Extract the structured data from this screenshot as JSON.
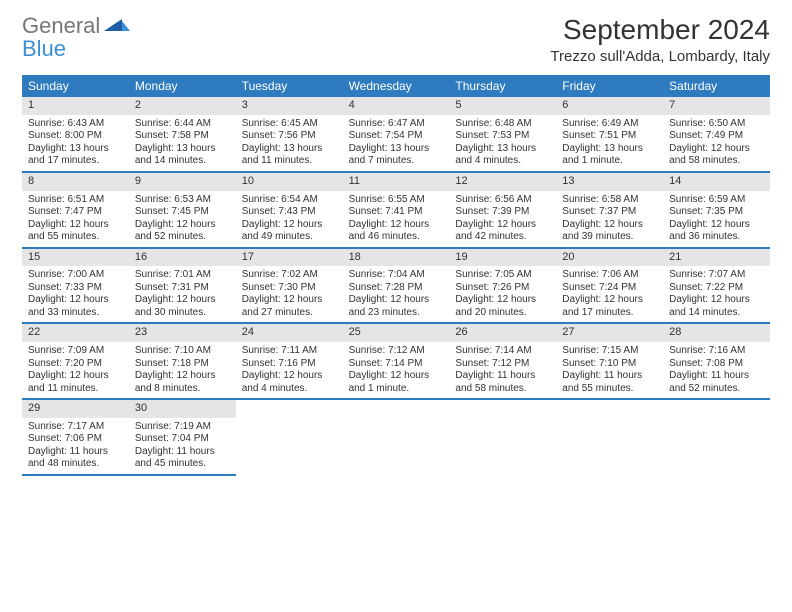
{
  "logo": {
    "line1": "General",
    "line2": "Blue"
  },
  "title": "September 2024",
  "subtitle": "Trezzo sull'Adda, Lombardy, Italy",
  "header_color": "#2f7bbf",
  "weekdays": [
    "Sunday",
    "Monday",
    "Tuesday",
    "Wednesday",
    "Thursday",
    "Friday",
    "Saturday"
  ],
  "weeks": [
    [
      {
        "day": "1",
        "sunrise": "Sunrise: 6:43 AM",
        "sunset": "Sunset: 8:00 PM",
        "dayl1": "Daylight: 13 hours",
        "dayl2": "and 17 minutes."
      },
      {
        "day": "2",
        "sunrise": "Sunrise: 6:44 AM",
        "sunset": "Sunset: 7:58 PM",
        "dayl1": "Daylight: 13 hours",
        "dayl2": "and 14 minutes."
      },
      {
        "day": "3",
        "sunrise": "Sunrise: 6:45 AM",
        "sunset": "Sunset: 7:56 PM",
        "dayl1": "Daylight: 13 hours",
        "dayl2": "and 11 minutes."
      },
      {
        "day": "4",
        "sunrise": "Sunrise: 6:47 AM",
        "sunset": "Sunset: 7:54 PM",
        "dayl1": "Daylight: 13 hours",
        "dayl2": "and 7 minutes."
      },
      {
        "day": "5",
        "sunrise": "Sunrise: 6:48 AM",
        "sunset": "Sunset: 7:53 PM",
        "dayl1": "Daylight: 13 hours",
        "dayl2": "and 4 minutes."
      },
      {
        "day": "6",
        "sunrise": "Sunrise: 6:49 AM",
        "sunset": "Sunset: 7:51 PM",
        "dayl1": "Daylight: 13 hours",
        "dayl2": "and 1 minute."
      },
      {
        "day": "7",
        "sunrise": "Sunrise: 6:50 AM",
        "sunset": "Sunset: 7:49 PM",
        "dayl1": "Daylight: 12 hours",
        "dayl2": "and 58 minutes."
      }
    ],
    [
      {
        "day": "8",
        "sunrise": "Sunrise: 6:51 AM",
        "sunset": "Sunset: 7:47 PM",
        "dayl1": "Daylight: 12 hours",
        "dayl2": "and 55 minutes."
      },
      {
        "day": "9",
        "sunrise": "Sunrise: 6:53 AM",
        "sunset": "Sunset: 7:45 PM",
        "dayl1": "Daylight: 12 hours",
        "dayl2": "and 52 minutes."
      },
      {
        "day": "10",
        "sunrise": "Sunrise: 6:54 AM",
        "sunset": "Sunset: 7:43 PM",
        "dayl1": "Daylight: 12 hours",
        "dayl2": "and 49 minutes."
      },
      {
        "day": "11",
        "sunrise": "Sunrise: 6:55 AM",
        "sunset": "Sunset: 7:41 PM",
        "dayl1": "Daylight: 12 hours",
        "dayl2": "and 46 minutes."
      },
      {
        "day": "12",
        "sunrise": "Sunrise: 6:56 AM",
        "sunset": "Sunset: 7:39 PM",
        "dayl1": "Daylight: 12 hours",
        "dayl2": "and 42 minutes."
      },
      {
        "day": "13",
        "sunrise": "Sunrise: 6:58 AM",
        "sunset": "Sunset: 7:37 PM",
        "dayl1": "Daylight: 12 hours",
        "dayl2": "and 39 minutes."
      },
      {
        "day": "14",
        "sunrise": "Sunrise: 6:59 AM",
        "sunset": "Sunset: 7:35 PM",
        "dayl1": "Daylight: 12 hours",
        "dayl2": "and 36 minutes."
      }
    ],
    [
      {
        "day": "15",
        "sunrise": "Sunrise: 7:00 AM",
        "sunset": "Sunset: 7:33 PM",
        "dayl1": "Daylight: 12 hours",
        "dayl2": "and 33 minutes."
      },
      {
        "day": "16",
        "sunrise": "Sunrise: 7:01 AM",
        "sunset": "Sunset: 7:31 PM",
        "dayl1": "Daylight: 12 hours",
        "dayl2": "and 30 minutes."
      },
      {
        "day": "17",
        "sunrise": "Sunrise: 7:02 AM",
        "sunset": "Sunset: 7:30 PM",
        "dayl1": "Daylight: 12 hours",
        "dayl2": "and 27 minutes."
      },
      {
        "day": "18",
        "sunrise": "Sunrise: 7:04 AM",
        "sunset": "Sunset: 7:28 PM",
        "dayl1": "Daylight: 12 hours",
        "dayl2": "and 23 minutes."
      },
      {
        "day": "19",
        "sunrise": "Sunrise: 7:05 AM",
        "sunset": "Sunset: 7:26 PM",
        "dayl1": "Daylight: 12 hours",
        "dayl2": "and 20 minutes."
      },
      {
        "day": "20",
        "sunrise": "Sunrise: 7:06 AM",
        "sunset": "Sunset: 7:24 PM",
        "dayl1": "Daylight: 12 hours",
        "dayl2": "and 17 minutes."
      },
      {
        "day": "21",
        "sunrise": "Sunrise: 7:07 AM",
        "sunset": "Sunset: 7:22 PM",
        "dayl1": "Daylight: 12 hours",
        "dayl2": "and 14 minutes."
      }
    ],
    [
      {
        "day": "22",
        "sunrise": "Sunrise: 7:09 AM",
        "sunset": "Sunset: 7:20 PM",
        "dayl1": "Daylight: 12 hours",
        "dayl2": "and 11 minutes."
      },
      {
        "day": "23",
        "sunrise": "Sunrise: 7:10 AM",
        "sunset": "Sunset: 7:18 PM",
        "dayl1": "Daylight: 12 hours",
        "dayl2": "and 8 minutes."
      },
      {
        "day": "24",
        "sunrise": "Sunrise: 7:11 AM",
        "sunset": "Sunset: 7:16 PM",
        "dayl1": "Daylight: 12 hours",
        "dayl2": "and 4 minutes."
      },
      {
        "day": "25",
        "sunrise": "Sunrise: 7:12 AM",
        "sunset": "Sunset: 7:14 PM",
        "dayl1": "Daylight: 12 hours",
        "dayl2": "and 1 minute."
      },
      {
        "day": "26",
        "sunrise": "Sunrise: 7:14 AM",
        "sunset": "Sunset: 7:12 PM",
        "dayl1": "Daylight: 11 hours",
        "dayl2": "and 58 minutes."
      },
      {
        "day": "27",
        "sunrise": "Sunrise: 7:15 AM",
        "sunset": "Sunset: 7:10 PM",
        "dayl1": "Daylight: 11 hours",
        "dayl2": "and 55 minutes."
      },
      {
        "day": "28",
        "sunrise": "Sunrise: 7:16 AM",
        "sunset": "Sunset: 7:08 PM",
        "dayl1": "Daylight: 11 hours",
        "dayl2": "and 52 minutes."
      }
    ],
    [
      {
        "day": "29",
        "sunrise": "Sunrise: 7:17 AM",
        "sunset": "Sunset: 7:06 PM",
        "dayl1": "Daylight: 11 hours",
        "dayl2": "and 48 minutes."
      },
      {
        "day": "30",
        "sunrise": "Sunrise: 7:19 AM",
        "sunset": "Sunset: 7:04 PM",
        "dayl1": "Daylight: 11 hours",
        "dayl2": "and 45 minutes."
      },
      null,
      null,
      null,
      null,
      null
    ]
  ]
}
